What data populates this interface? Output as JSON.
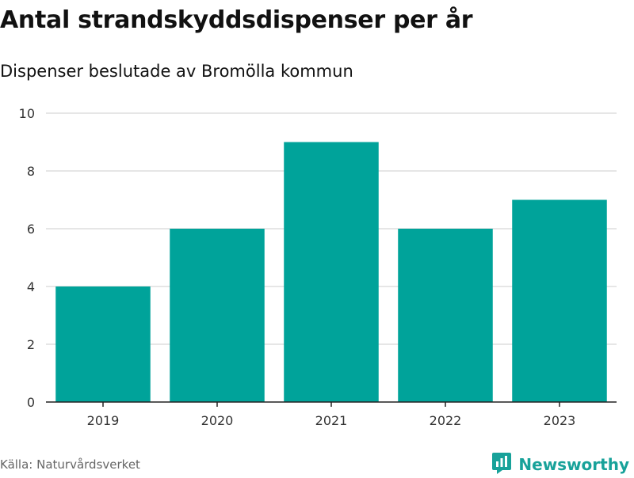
{
  "title": "Antal strandskyddsdispenser per år",
  "subtitle": "Dispenser beslutade av Bromölla kommun",
  "source": "Källa: Naturvårdsverket",
  "brand": {
    "name": "Newsworthy",
    "icon": "newsworthy-logo-icon",
    "color": "#18a29a"
  },
  "colors": {
    "bar": "#00a39a",
    "grid": "#dddddd",
    "axis": "#222222"
  },
  "chart_data": {
    "type": "bar",
    "categories": [
      "2019",
      "2020",
      "2021",
      "2022",
      "2023"
    ],
    "values": [
      4,
      6,
      9,
      6,
      7
    ],
    "title": "Antal strandskyddsdispenser per år",
    "subtitle": "Dispenser beslutade av Bromölla kommun",
    "xlabel": "",
    "ylabel": "",
    "ylim": [
      0,
      10
    ],
    "yticks": [
      0,
      2,
      4,
      6,
      8,
      10
    ],
    "grid": true,
    "legend": "none"
  }
}
